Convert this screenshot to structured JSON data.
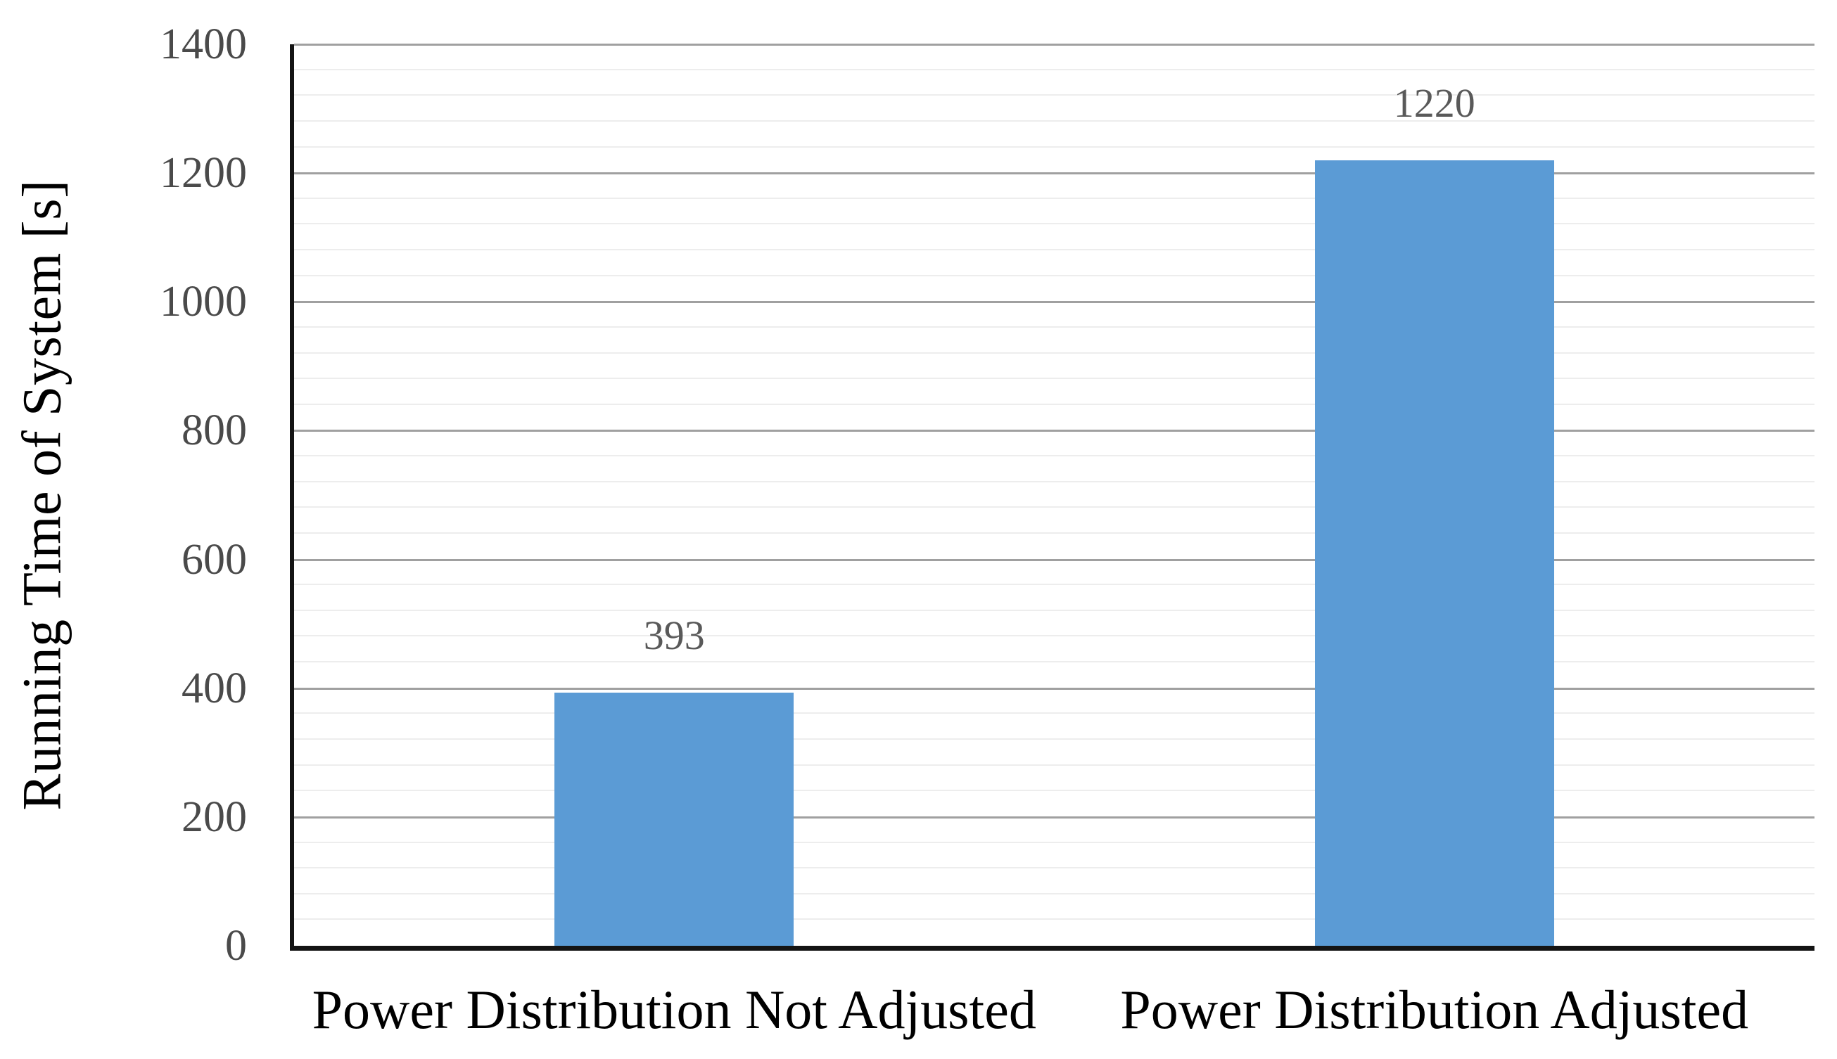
{
  "chart_data": {
    "type": "bar",
    "title": "",
    "xlabel": "",
    "ylabel": "Running Time of System [s]",
    "categories": [
      "Power Distribution Not Adjusted",
      "Power Distribution Adjusted"
    ],
    "values": [
      393,
      1220
    ],
    "data_labels": [
      "393",
      "1220"
    ],
    "ylim": [
      0,
      1400
    ],
    "y_major_step": 200,
    "y_minor_step": 40,
    "y_tick_labels": [
      "0",
      "200",
      "400",
      "600",
      "800",
      "1000",
      "1200",
      "1400"
    ],
    "grid": "horizontal major and minor gridlines on",
    "legend": "none",
    "colors": {
      "bar": "#5B9BD5",
      "major_grid": "#A0A0A0",
      "minor_grid": "#EDEDED",
      "axis_line": "#141414",
      "tick_label": "#4A4A4A",
      "data_label": "#595959",
      "category_label": "#000000",
      "background": "#FFFFFF"
    }
  }
}
